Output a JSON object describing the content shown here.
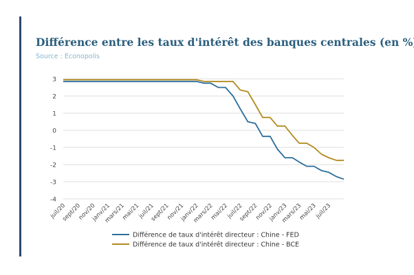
{
  "title": "Différence entre les taux d'intérêt des banques centrales (en %)",
  "source": "Source : Econopolis",
  "colors": {
    "accent_bar": "#2c4a6b",
    "title": "#2c5f7e",
    "source": "#8ab4cc",
    "grid": "#dddddd",
    "axis_text": "#444444",
    "legend_text": "#333333"
  },
  "chart_data": {
    "type": "line",
    "title": "",
    "xlabel": "",
    "ylabel": "",
    "ylim": [
      -4,
      3
    ],
    "yticks": [
      "3",
      "2",
      "1",
      "0",
      "-1",
      "-2",
      "-3",
      "-4"
    ],
    "ytick_values": [
      3,
      2,
      1,
      0,
      -1,
      -2,
      -3,
      -4
    ],
    "grid": true,
    "legend_position": "bottom",
    "x_dates": [
      "2020-07-01",
      "2020-08-01",
      "2020-09-01",
      "2020-10-01",
      "2020-11-01",
      "2020-12-01",
      "2021-01-01",
      "2021-02-01",
      "2021-03-01",
      "2021-04-01",
      "2021-05-01",
      "2021-06-01",
      "2021-07-01",
      "2021-08-01",
      "2021-09-01",
      "2021-10-01",
      "2021-11-01",
      "2021-12-01",
      "2022-01-01",
      "2022-02-01",
      "2022-03-01",
      "2022-04-01",
      "2022-05-01",
      "2022-06-01",
      "2022-07-01",
      "2022-08-01",
      "2022-09-01",
      "2022-10-01",
      "2022-11-01",
      "2022-12-01",
      "2023-01-01",
      "2023-02-01",
      "2023-03-01",
      "2023-04-01",
      "2023-05-01",
      "2023-06-01",
      "2023-07-01",
      "2023-08-01",
      "2023-09-01"
    ],
    "x_tick_labels": [
      "juil/20",
      "sept/20",
      "nov/20",
      "janv/21",
      "mars/21",
      "mai/21",
      "juil/21",
      "sept/21",
      "nov/21",
      "janv/22",
      "mars/22",
      "mai/22",
      "juil/22",
      "sept/22",
      "nov/22",
      "janv/23",
      "mars/23",
      "mai/23",
      "juil/23"
    ],
    "series": [
      {
        "name": "Différence de taux d'intérêt directeur : Chine - FED",
        "color": "#2a6d9c",
        "values": [
          2.85,
          2.85,
          2.85,
          2.85,
          2.85,
          2.85,
          2.85,
          2.85,
          2.85,
          2.85,
          2.85,
          2.85,
          2.85,
          2.85,
          2.85,
          2.85,
          2.85,
          2.85,
          2.85,
          2.75,
          2.75,
          2.5,
          2.5,
          2.0,
          1.25,
          0.5,
          0.4,
          -0.35,
          -0.35,
          -1.1,
          -1.6,
          -1.6,
          -1.85,
          -2.1,
          -2.1,
          -2.35,
          -2.45,
          -2.7,
          -2.85
        ]
      },
      {
        "name": "Différence de taux d'intérêt directeur : Chine - BCE",
        "color": "#b08a1e",
        "values": [
          2.95,
          2.95,
          2.95,
          2.95,
          2.95,
          2.95,
          2.95,
          2.95,
          2.95,
          2.95,
          2.95,
          2.95,
          2.95,
          2.95,
          2.95,
          2.95,
          2.95,
          2.95,
          2.95,
          2.85,
          2.85,
          2.85,
          2.85,
          2.85,
          2.35,
          2.25,
          1.5,
          0.75,
          0.75,
          0.25,
          0.25,
          -0.3,
          -0.75,
          -0.75,
          -1.0,
          -1.4,
          -1.6,
          -1.75,
          -1.75
        ]
      }
    ]
  }
}
